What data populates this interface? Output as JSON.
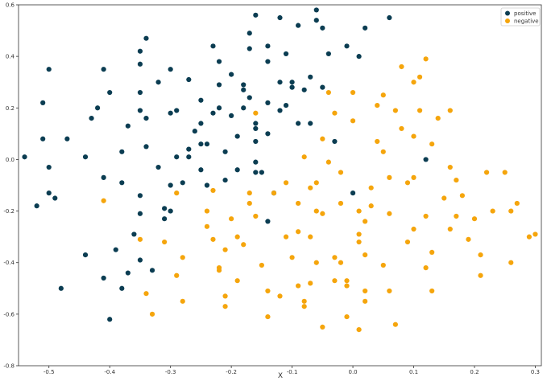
{
  "chart_data": {
    "type": "scatter",
    "title": "",
    "xlabel": "X",
    "ylabel": "",
    "xlim": [
      -0.55,
      0.31
    ],
    "ylim": [
      -0.8,
      0.6
    ],
    "xticks": [
      -0.5,
      -0.4,
      -0.3,
      -0.2,
      -0.1,
      0.0,
      0.1,
      0.2,
      0.3
    ],
    "xtick_labels": [
      "-0.5",
      "-0.4",
      "-0.3",
      "-0.2",
      "-0.1",
      "0.0",
      "0.1",
      "0.2",
      "0.3"
    ],
    "yticks": [
      0.6,
      0.4,
      0.2,
      0.0,
      -0.2,
      -0.4,
      -0.6,
      -0.8
    ],
    "ytick_labels": [
      "0.6",
      "0.4",
      "0.2",
      "0.0",
      "-0.2",
      "-0.4",
      "-0.6",
      "-0.8"
    ],
    "grid": false,
    "legend_position": "top-right",
    "series": [
      {
        "name": "positive",
        "color": "#0b3d52",
        "points": [
          [
            -0.54,
            0.01
          ],
          [
            -0.52,
            -0.18
          ],
          [
            -0.51,
            0.08
          ],
          [
            -0.51,
            0.22
          ],
          [
            -0.5,
            0.35
          ],
          [
            -0.5,
            -0.13
          ],
          [
            -0.5,
            -0.03
          ],
          [
            -0.49,
            -0.15
          ],
          [
            -0.48,
            -0.5
          ],
          [
            -0.47,
            0.08
          ],
          [
            -0.44,
            0.01
          ],
          [
            -0.44,
            -0.37
          ],
          [
            -0.43,
            0.16
          ],
          [
            -0.42,
            0.2
          ],
          [
            -0.41,
            -0.07
          ],
          [
            -0.41,
            0.35
          ],
          [
            -0.41,
            -0.46
          ],
          [
            -0.4,
            0.26
          ],
          [
            -0.4,
            -0.62
          ],
          [
            -0.39,
            -0.35
          ],
          [
            -0.38,
            -0.5
          ],
          [
            -0.38,
            -0.09
          ],
          [
            -0.38,
            0.03
          ],
          [
            -0.37,
            0.13
          ],
          [
            -0.37,
            -0.44
          ],
          [
            -0.36,
            -0.29
          ],
          [
            -0.35,
            0.42
          ],
          [
            -0.35,
            0.37
          ],
          [
            -0.35,
            0.26
          ],
          [
            -0.35,
            0.19
          ],
          [
            -0.35,
            -0.14
          ],
          [
            -0.35,
            -0.39
          ],
          [
            -0.35,
            -0.21
          ],
          [
            -0.34,
            0.47
          ],
          [
            -0.34,
            0.16
          ],
          [
            -0.34,
            0.05
          ],
          [
            -0.33,
            -0.43
          ],
          [
            -0.32,
            0.3
          ],
          [
            -0.32,
            -0.03
          ],
          [
            -0.31,
            -0.19
          ],
          [
            -0.31,
            -0.23
          ],
          [
            -0.3,
            0.35
          ],
          [
            -0.3,
            0.18
          ],
          [
            -0.3,
            -0.1
          ],
          [
            -0.3,
            -0.2
          ],
          [
            -0.29,
            0.19
          ],
          [
            -0.29,
            0.01
          ],
          [
            -0.28,
            -0.09
          ],
          [
            -0.27,
            0.31
          ],
          [
            -0.27,
            0.04
          ],
          [
            -0.27,
            0.01
          ],
          [
            -0.26,
            0.11
          ],
          [
            -0.25,
            0.23
          ],
          [
            -0.25,
            0.06
          ],
          [
            -0.25,
            0.14
          ],
          [
            -0.25,
            -0.04
          ],
          [
            -0.24,
            0.06
          ],
          [
            -0.24,
            -0.1
          ],
          [
            -0.23,
            0.44
          ],
          [
            -0.23,
            0.18
          ],
          [
            -0.22,
            0.38
          ],
          [
            -0.22,
            0.2
          ],
          [
            -0.22,
            0.29
          ],
          [
            -0.21,
            0.03
          ],
          [
            -0.21,
            -0.08
          ],
          [
            -0.2,
            0.33
          ],
          [
            -0.2,
            0.17
          ],
          [
            -0.19,
            -0.04
          ],
          [
            -0.19,
            0.09
          ],
          [
            -0.18,
            0.2
          ],
          [
            -0.18,
            0.29
          ],
          [
            -0.18,
            0.27
          ],
          [
            -0.17,
            0.49
          ],
          [
            -0.17,
            0.43
          ],
          [
            -0.17,
            0.24
          ],
          [
            -0.16,
            0.56
          ],
          [
            -0.16,
            0.14
          ],
          [
            -0.16,
            0.12
          ],
          [
            -0.16,
            0.07
          ],
          [
            -0.16,
            -0.01
          ],
          [
            -0.16,
            -0.05
          ],
          [
            -0.15,
            -0.05
          ],
          [
            -0.14,
            0.44
          ],
          [
            -0.14,
            0.38
          ],
          [
            -0.14,
            0.22
          ],
          [
            -0.14,
            0.1
          ],
          [
            -0.14,
            -0.24
          ],
          [
            -0.13,
            -0.13
          ],
          [
            -0.12,
            0.3
          ],
          [
            -0.12,
            0.55
          ],
          [
            -0.12,
            0.19
          ],
          [
            -0.11,
            0.21
          ],
          [
            -0.11,
            0.41
          ],
          [
            -0.1,
            0.3
          ],
          [
            -0.1,
            0.28
          ],
          [
            -0.09,
            0.52
          ],
          [
            -0.09,
            0.14
          ],
          [
            -0.08,
            0.27
          ],
          [
            -0.07,
            0.32
          ],
          [
            -0.07,
            0.14
          ],
          [
            -0.06,
            0.54
          ],
          [
            -0.06,
            0.58
          ],
          [
            -0.05,
            0.28
          ],
          [
            -0.05,
            0.51
          ],
          [
            -0.04,
            0.41
          ],
          [
            -0.03,
            0.07
          ],
          [
            -0.01,
            0.44
          ],
          [
            0.0,
            -0.13
          ],
          [
            0.01,
            0.4
          ],
          [
            0.02,
            0.51
          ],
          [
            0.06,
            0.55
          ],
          [
            0.12,
            0.0
          ]
        ]
      },
      {
        "name": "negative",
        "color": "#f5a50c",
        "points": [
          [
            -0.41,
            -0.16
          ],
          [
            -0.35,
            -0.31
          ],
          [
            -0.34,
            -0.52
          ],
          [
            -0.33,
            -0.6
          ],
          [
            -0.31,
            -0.32
          ],
          [
            -0.29,
            -0.13
          ],
          [
            -0.29,
            -0.45
          ],
          [
            -0.28,
            -0.38
          ],
          [
            -0.28,
            -0.55
          ],
          [
            -0.24,
            -0.26
          ],
          [
            -0.24,
            -0.2
          ],
          [
            -0.23,
            -0.12
          ],
          [
            -0.23,
            -0.31
          ],
          [
            -0.22,
            -0.42
          ],
          [
            -0.22,
            -0.43
          ],
          [
            -0.21,
            -0.57
          ],
          [
            -0.21,
            -0.35
          ],
          [
            -0.21,
            -0.53
          ],
          [
            -0.2,
            -0.23
          ],
          [
            -0.19,
            -0.3
          ],
          [
            -0.19,
            -0.47
          ],
          [
            -0.18,
            -0.33
          ],
          [
            -0.17,
            -0.17
          ],
          [
            -0.17,
            -0.13
          ],
          [
            -0.16,
            0.18
          ],
          [
            -0.16,
            -0.22
          ],
          [
            -0.15,
            -0.41
          ],
          [
            -0.14,
            -0.61
          ],
          [
            -0.14,
            -0.51
          ],
          [
            -0.13,
            -0.13
          ],
          [
            -0.12,
            -0.53
          ],
          [
            -0.11,
            -0.3
          ],
          [
            -0.11,
            -0.09
          ],
          [
            -0.1,
            -0.38
          ],
          [
            -0.09,
            -0.17
          ],
          [
            -0.09,
            -0.28
          ],
          [
            -0.09,
            -0.49
          ],
          [
            -0.08,
            -0.55
          ],
          [
            -0.08,
            -0.57
          ],
          [
            -0.08,
            0.01
          ],
          [
            -0.07,
            -0.48
          ],
          [
            -0.07,
            -0.3
          ],
          [
            -0.07,
            -0.11
          ],
          [
            -0.06,
            -0.2
          ],
          [
            -0.06,
            -0.09
          ],
          [
            -0.06,
            -0.4
          ],
          [
            -0.05,
            0.08
          ],
          [
            -0.05,
            -0.65
          ],
          [
            -0.05,
            -0.21
          ],
          [
            -0.04,
            -0.01
          ],
          [
            -0.04,
            0.26
          ],
          [
            -0.03,
            0.18
          ],
          [
            -0.03,
            -0.38
          ],
          [
            -0.03,
            -0.47
          ],
          [
            -0.02,
            -0.4
          ],
          [
            -0.02,
            -0.17
          ],
          [
            -0.02,
            -0.05
          ],
          [
            -0.01,
            -0.47
          ],
          [
            -0.01,
            -0.49
          ],
          [
            -0.01,
            -0.61
          ],
          [
            0.0,
            0.26
          ],
          [
            0.0,
            0.15
          ],
          [
            0.01,
            -0.29
          ],
          [
            0.01,
            -0.66
          ],
          [
            0.01,
            -0.2
          ],
          [
            0.01,
            -0.32
          ],
          [
            0.02,
            -0.55
          ],
          [
            0.02,
            -0.24
          ],
          [
            0.02,
            -0.37
          ],
          [
            0.02,
            -0.51
          ],
          [
            0.03,
            -0.11
          ],
          [
            0.03,
            -0.18
          ],
          [
            0.04,
            0.07
          ],
          [
            0.04,
            0.21
          ],
          [
            0.05,
            0.25
          ],
          [
            0.05,
            0.03
          ],
          [
            0.05,
            -0.41
          ],
          [
            0.06,
            -0.07
          ],
          [
            0.06,
            -0.51
          ],
          [
            0.06,
            -0.21
          ],
          [
            0.07,
            -0.64
          ],
          [
            0.07,
            0.19
          ],
          [
            0.08,
            0.12
          ],
          [
            0.08,
            0.36
          ],
          [
            0.09,
            -0.09
          ],
          [
            0.09,
            -0.32
          ],
          [
            0.1,
            -0.27
          ],
          [
            0.1,
            0.3
          ],
          [
            0.1,
            0.09
          ],
          [
            0.1,
            -0.07
          ],
          [
            0.11,
            0.32
          ],
          [
            0.11,
            0.19
          ],
          [
            0.12,
            -0.22
          ],
          [
            0.12,
            -0.42
          ],
          [
            0.12,
            0.39
          ],
          [
            0.13,
            -0.36
          ],
          [
            0.13,
            -0.51
          ],
          [
            0.13,
            0.06
          ],
          [
            0.14,
            0.16
          ],
          [
            0.15,
            -0.15
          ],
          [
            0.16,
            -0.03
          ],
          [
            0.16,
            0.19
          ],
          [
            0.16,
            -0.27
          ],
          [
            0.17,
            -0.22
          ],
          [
            0.17,
            -0.08
          ],
          [
            0.18,
            -0.14
          ],
          [
            0.19,
            -0.31
          ],
          [
            0.2,
            -0.23
          ],
          [
            0.21,
            -0.45
          ],
          [
            0.21,
            -0.37
          ],
          [
            0.22,
            -0.05
          ],
          [
            0.23,
            -0.2
          ],
          [
            0.25,
            -0.05
          ],
          [
            0.26,
            -0.2
          ],
          [
            0.26,
            -0.4
          ],
          [
            0.27,
            -0.17
          ],
          [
            0.29,
            -0.3
          ],
          [
            0.3,
            -0.29
          ]
        ]
      }
    ]
  }
}
